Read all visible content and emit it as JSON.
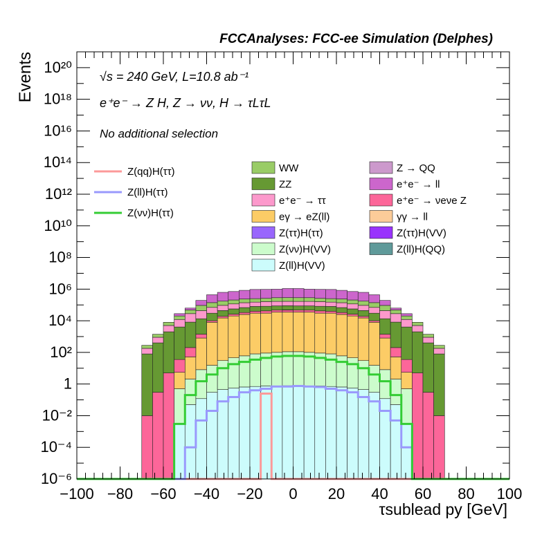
{
  "title": "FCCAnalyses: FCC-ee Simulation (Delphes)",
  "annotations": {
    "energy": "√s = 240 GeV, L=10.8 ab⁻¹",
    "process": "e⁺e⁻ → Z H, Z → νν, H → τLτL",
    "selection": "No additional selection"
  },
  "chart_data": {
    "type": "histogram",
    "title": "FCCAnalyses: FCC-ee Simulation (Delphes)",
    "xlabel": "τsublead py [GeV]",
    "ylabel": "Events",
    "xlim": [
      -100,
      100
    ],
    "ylim": [
      1e-06,
      1e+21
    ],
    "yscale": "log",
    "x_tick_labels": [
      "−100",
      "−80",
      "−60",
      "−40",
      "−20",
      "0",
      "20",
      "40",
      "60",
      "80",
      "100"
    ],
    "y_tick_labels": [
      "10⁻⁶",
      "10⁻⁴",
      "10⁻²",
      "1",
      "10²",
      "10⁴",
      "10⁶",
      "10⁸",
      "10¹⁰",
      "10¹²",
      "10¹⁴",
      "10¹⁶",
      "10¹⁸",
      "10²⁰"
    ],
    "legend_placement": "upper area, three columns",
    "bin_edges": [
      -70,
      -65,
      -60,
      -55,
      -50,
      -45,
      -40,
      -35,
      -30,
      -25,
      -20,
      -15,
      -10,
      -5,
      0,
      5,
      10,
      15,
      20,
      25,
      30,
      35,
      40,
      45,
      50,
      55,
      60,
      65,
      70
    ],
    "stacked_backgrounds": [
      {
        "name": "Z(ll)H(QQ)",
        "color": "#5f9a9a",
        "values": [
          0,
          0,
          0,
          0,
          0,
          0,
          0,
          0,
          0,
          0,
          0,
          0,
          0,
          0,
          0,
          0,
          0,
          0,
          0,
          0,
          0,
          0,
          0,
          0,
          0,
          0,
          0,
          0
        ]
      },
      {
        "name": "Z(ll)H(VV)",
        "color": "#ccfcfc",
        "values": [
          0,
          0,
          0,
          0.003,
          0.05,
          0.12,
          0.3,
          0.45,
          0.55,
          0.65,
          0.7,
          0.75,
          0.75,
          0.78,
          0.78,
          0.75,
          0.75,
          0.7,
          0.65,
          0.55,
          0.45,
          0.3,
          0.12,
          0.05,
          0.003,
          0,
          0,
          0
        ]
      },
      {
        "name": "Z(νν)H(VV)",
        "color": "#ccfccc",
        "values": [
          0,
          0,
          0,
          0.5,
          2,
          8,
          15,
          30,
          45,
          60,
          80,
          90,
          100,
          110,
          110,
          100,
          90,
          80,
          60,
          45,
          30,
          15,
          8,
          2,
          0.5,
          0,
          0,
          0
        ]
      },
      {
        "name": "Z(ττ)H(VV)",
        "color": "#9933fc",
        "values": [
          0,
          0,
          0,
          0,
          0,
          0,
          0.003,
          0.005,
          0.008,
          0.01,
          0.015,
          0.02,
          0.03,
          0.03,
          0.03,
          0.03,
          0.02,
          0.015,
          0.01,
          0.008,
          0.005,
          0.003,
          0,
          0,
          0,
          0,
          0,
          0
        ]
      },
      {
        "name": "Z(ττ)H(ττ)",
        "color": "#9966fc",
        "values": [
          0,
          0,
          0,
          0,
          0,
          0,
          0,
          0.003,
          0.005,
          0.006,
          0.008,
          0.008,
          0.01,
          0.01,
          0.01,
          0.01,
          0.008,
          0.008,
          0.006,
          0.005,
          0.003,
          0,
          0,
          0,
          0,
          0,
          0,
          0
        ]
      },
      {
        "name": "γγ → ll",
        "color": "#fccc99",
        "values": [
          0,
          0,
          0,
          0,
          0,
          0,
          0,
          0,
          0,
          0,
          0,
          0,
          0,
          0,
          0,
          0,
          0,
          0,
          0,
          0,
          0,
          0,
          0,
          0,
          0,
          0,
          0,
          0
        ]
      },
      {
        "name": "eγ → eZ(ll)",
        "color": "#fccc66",
        "values": [
          0,
          0,
          0,
          5,
          50,
          800,
          8000,
          15000,
          20000,
          25000,
          30000,
          30000,
          35000,
          35000,
          35000,
          35000,
          30000,
          30000,
          25000,
          20000,
          15000,
          8000,
          800,
          50,
          5,
          0,
          0,
          0
        ]
      },
      {
        "name": "e⁺e⁻ → νeνe Z",
        "color": "#fc6699",
        "values": [
          0.01,
          0.3,
          5,
          30,
          150,
          600,
          2000,
          4000,
          6000,
          8000,
          10000,
          12000,
          12000,
          12000,
          12000,
          12000,
          12000,
          10000,
          8000,
          6000,
          4000,
          2000,
          600,
          150,
          30,
          5,
          0.3,
          0.01
        ]
      },
      {
        "name": "Z → QQ",
        "color": "#cc99cc",
        "values": [
          0,
          0,
          0,
          0,
          0,
          0,
          0,
          0,
          0,
          0,
          0,
          0,
          0,
          2000,
          0,
          0,
          0,
          0,
          0,
          0,
          0,
          0,
          0,
          0,
          0,
          0,
          0,
          0
        ]
      },
      {
        "name": "ZZ",
        "color": "#669933",
        "values": [
          80,
          400,
          2000,
          4000,
          8000,
          12000,
          20000,
          25000,
          30000,
          35000,
          40000,
          40000,
          40000,
          40000,
          40000,
          40000,
          40000,
          40000,
          35000,
          30000,
          25000,
          20000,
          12000,
          8000,
          4000,
          2000,
          400,
          80
        ]
      },
      {
        "name": "e⁺e⁻ → ττ",
        "color": "#fc99cc",
        "values": [
          100,
          500,
          3000,
          8000,
          20000,
          30000,
          40000,
          50000,
          60000,
          70000,
          70000,
          80000,
          80000,
          80000,
          80000,
          80000,
          80000,
          70000,
          70000,
          60000,
          50000,
          40000,
          30000,
          20000,
          8000,
          3000,
          500,
          100
        ]
      },
      {
        "name": "WW",
        "color": "#99cc66",
        "values": [
          100,
          500,
          3000,
          8000,
          20000,
          50000,
          70000,
          80000,
          90000,
          100000,
          100000,
          100000,
          120000,
          120000,
          120000,
          120000,
          100000,
          100000,
          100000,
          90000,
          80000,
          70000,
          50000,
          20000,
          8000,
          3000,
          500,
          100
        ]
      },
      {
        "name": "e⁺e⁻ → ll",
        "color": "#cc66cc",
        "values": [
          0,
          0,
          0,
          8000,
          15000,
          100000,
          300000,
          450000,
          500000,
          600000,
          700000,
          700000,
          700000,
          800000,
          800000,
          700000,
          700000,
          700000,
          600000,
          500000,
          450000,
          300000,
          100000,
          15000,
          8000,
          0,
          0,
          0
        ]
      }
    ],
    "signals": [
      {
        "name": "Z(qq)H(ττ)",
        "color": "#fc9999",
        "values": [
          0,
          0,
          0,
          0,
          0,
          0,
          0,
          0,
          0,
          0,
          0,
          0.25,
          0,
          0,
          0,
          0,
          0,
          0,
          0,
          0,
          0,
          0,
          0,
          0,
          0,
          0,
          0,
          0
        ]
      },
      {
        "name": "Z(ll)H(ττ)",
        "color": "#9999fc",
        "values": [
          0,
          0,
          0,
          0,
          0.0001,
          0.005,
          0.02,
          0.08,
          0.15,
          0.3,
          0.4,
          0.5,
          0.7,
          0.7,
          0.75,
          0.7,
          0.65,
          0.5,
          0.4,
          0.3,
          0.15,
          0.08,
          0.02,
          0.005,
          0.0001,
          0,
          0,
          0
        ]
      },
      {
        "name": "Z(νν)H(ττ)",
        "color": "#33cc33",
        "values": [
          0,
          0,
          0,
          0.003,
          0.2,
          1.5,
          4,
          10,
          18,
          25,
          35,
          45,
          55,
          60,
          60,
          55,
          45,
          35,
          25,
          18,
          10,
          4,
          1.5,
          0.2,
          0.003,
          0,
          0,
          0
        ]
      }
    ]
  }
}
